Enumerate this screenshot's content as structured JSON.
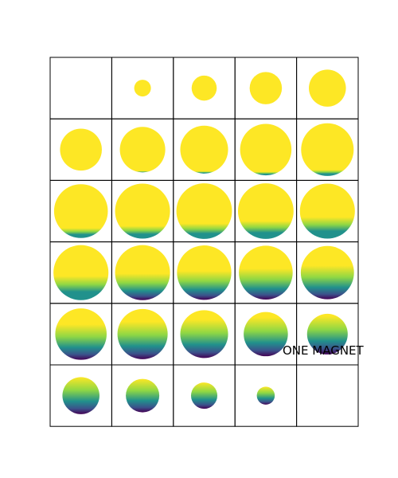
{
  "annotation": "ONE MAGNET",
  "grid": {
    "rows": 6,
    "cols": 5
  },
  "colors": {
    "high": "#fde725",
    "mid_high": "#8fd744",
    "mid": "#21918c",
    "mid_low": "#3b528b",
    "low": "#440154",
    "cell_border": "#000000",
    "background": "#ffffff"
  },
  "slices": [
    {
      "index": 0,
      "radius": 0,
      "dark": 0
    },
    {
      "index": 1,
      "radius": 0.28,
      "dark": 0
    },
    {
      "index": 2,
      "radius": 0.42,
      "dark": 0
    },
    {
      "index": 3,
      "radius": 0.54,
      "dark": 0
    },
    {
      "index": 4,
      "radius": 0.62,
      "dark": 0
    },
    {
      "index": 5,
      "radius": 0.7,
      "dark": 0
    },
    {
      "index": 6,
      "radius": 0.76,
      "dark": 0.02
    },
    {
      "index": 7,
      "radius": 0.8,
      "dark": 0.04
    },
    {
      "index": 8,
      "radius": 0.86,
      "dark": 0.06
    },
    {
      "index": 9,
      "radius": 0.88,
      "dark": 0.1
    },
    {
      "index": 10,
      "radius": 0.9,
      "dark": 0.16
    },
    {
      "index": 11,
      "radius": 0.92,
      "dark": 0.2
    },
    {
      "index": 12,
      "radius": 0.93,
      "dark": 0.24
    },
    {
      "index": 13,
      "radius": 0.93,
      "dark": 0.28
    },
    {
      "index": 14,
      "radius": 0.92,
      "dark": 0.34
    },
    {
      "index": 15,
      "radius": 0.92,
      "dark": 0.38
    },
    {
      "index": 16,
      "radius": 0.92,
      "dark": 0.42
    },
    {
      "index": 17,
      "radius": 0.91,
      "dark": 0.46
    },
    {
      "index": 18,
      "radius": 0.9,
      "dark": 0.5
    },
    {
      "index": 19,
      "radius": 0.89,
      "dark": 0.55
    },
    {
      "index": 20,
      "radius": 0.86,
      "dark": 0.6
    },
    {
      "index": 21,
      "radius": 0.84,
      "dark": 0.65
    },
    {
      "index": 22,
      "radius": 0.8,
      "dark": 0.7
    },
    {
      "index": 23,
      "radius": 0.74,
      "dark": 0.76
    },
    {
      "index": 24,
      "radius": 0.68,
      "dark": 0.82
    },
    {
      "index": 25,
      "radius": 0.62,
      "dark": 0.88
    },
    {
      "index": 26,
      "radius": 0.56,
      "dark": 0.92
    },
    {
      "index": 27,
      "radius": 0.44,
      "dark": 0.96
    },
    {
      "index": 28,
      "radius": 0.3,
      "dark": 1.0
    },
    {
      "index": 29,
      "radius": 0,
      "dark": 0
    }
  ]
}
